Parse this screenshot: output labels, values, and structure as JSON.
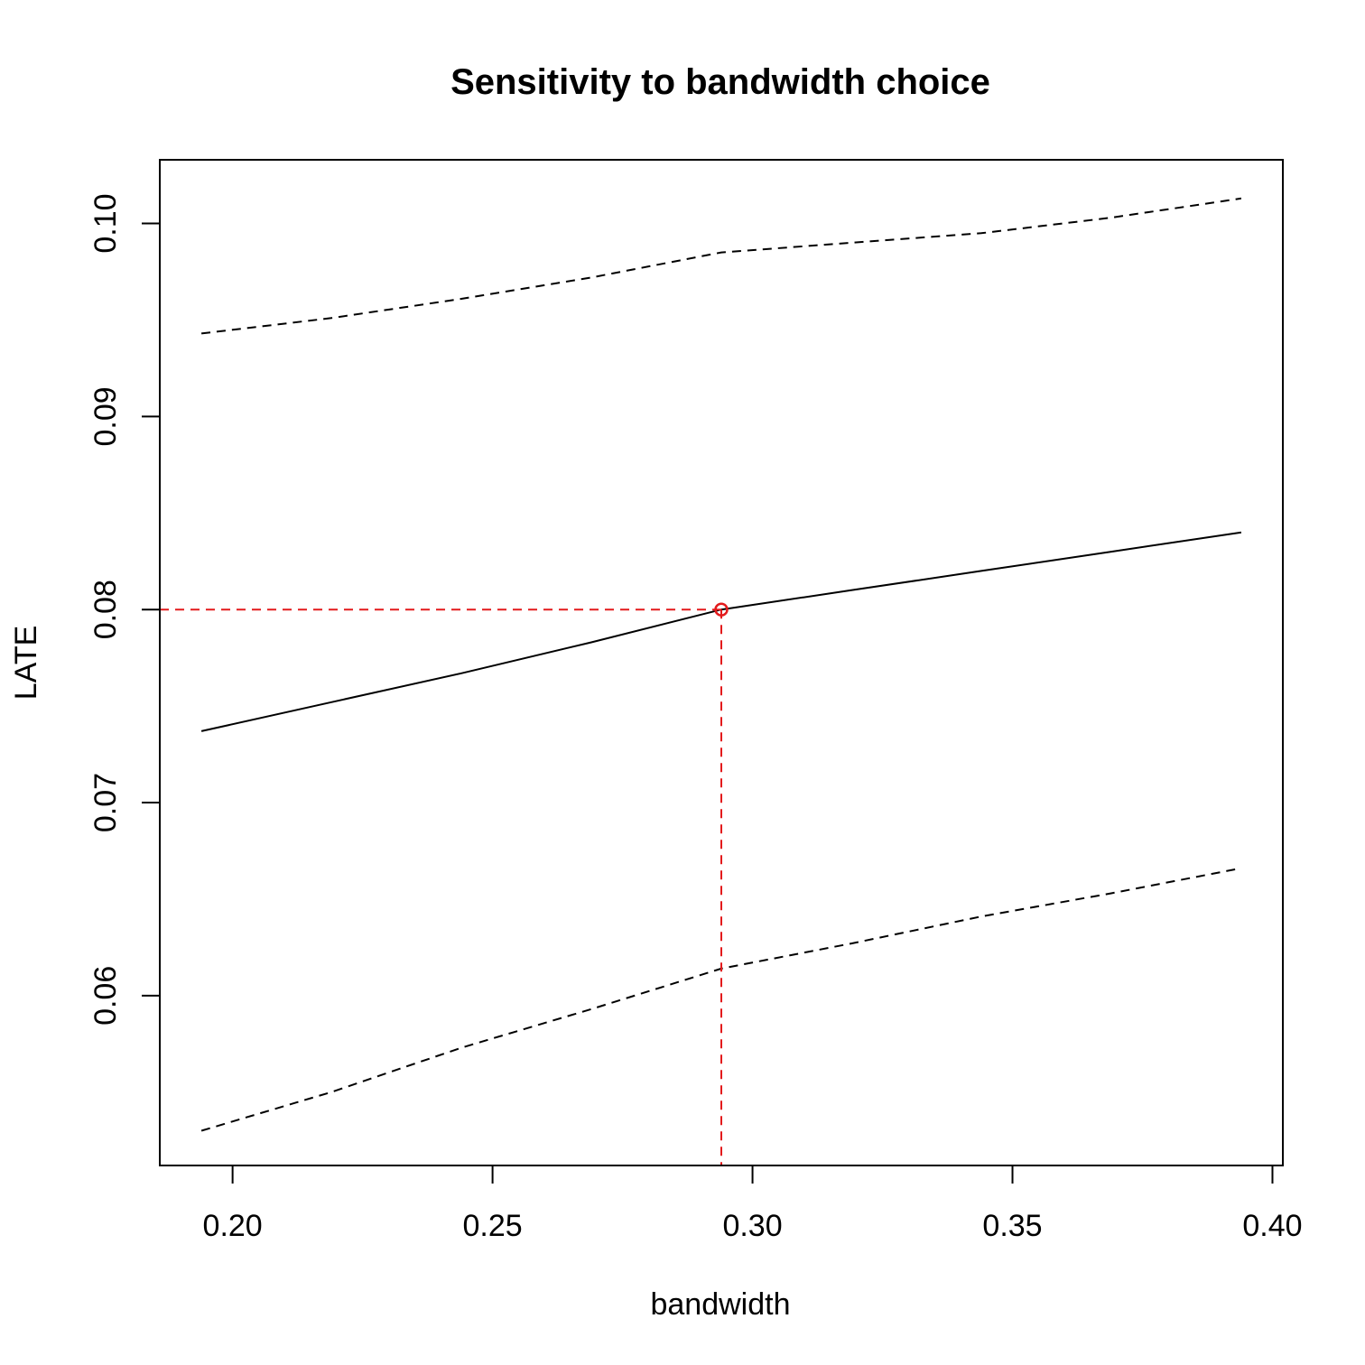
{
  "chart_data": {
    "type": "line",
    "title": "Sensitivity to bandwidth choice",
    "xlabel": "bandwidth",
    "ylabel": "LATE",
    "xlim": [
      0.186,
      0.402
    ],
    "ylim": [
      0.0512,
      0.1033
    ],
    "x_ticks": [
      "0.20",
      "0.25",
      "0.30",
      "0.35",
      "0.40"
    ],
    "y_ticks": [
      "0.06",
      "0.07",
      "0.08",
      "0.09",
      "0.10"
    ],
    "grid": false,
    "series": [
      {
        "role": "estimate",
        "style": "solid",
        "color": "#000000",
        "x": [
          0.194,
          0.219,
          0.244,
          0.269,
          0.294,
          0.319,
          0.344,
          0.369,
          0.394
        ],
        "y": [
          0.0737,
          0.0752,
          0.0767,
          0.0783,
          0.08,
          0.081,
          0.082,
          0.083,
          0.084
        ]
      },
      {
        "role": "upper-bound",
        "style": "dashed",
        "color": "#000000",
        "x": [
          0.194,
          0.219,
          0.244,
          0.269,
          0.294,
          0.319,
          0.344,
          0.369,
          0.394
        ],
        "y": [
          0.0943,
          0.0951,
          0.0961,
          0.0972,
          0.0985,
          0.099,
          0.0995,
          0.1003,
          0.1013
        ]
      },
      {
        "role": "lower-bound",
        "style": "dashed",
        "color": "#000000",
        "x": [
          0.194,
          0.219,
          0.244,
          0.269,
          0.294,
          0.319,
          0.344,
          0.369,
          0.394
        ],
        "y": [
          0.053,
          0.055,
          0.0573,
          0.0593,
          0.0614,
          0.0627,
          0.0641,
          0.0653,
          0.0666
        ]
      }
    ],
    "highlight": {
      "x": 0.294,
      "y": 0.08,
      "color": "#e31a1c"
    }
  }
}
